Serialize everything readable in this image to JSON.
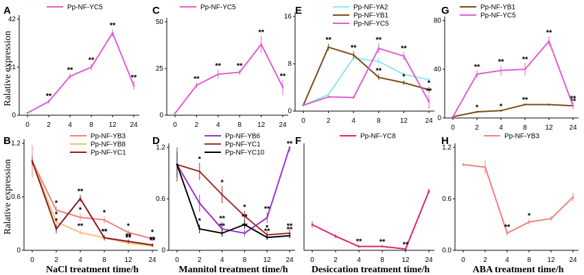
{
  "figure": {
    "ylabel_top": "Ralative expression",
    "ylabel_bottom": "Ralative expression"
  },
  "chart_data": [
    {
      "panel": "A",
      "type": "line",
      "categories": [
        "0",
        "2",
        "4",
        "8",
        "12",
        "24"
      ],
      "ylim": [
        0,
        42
      ],
      "yticks": [
        "0",
        "21",
        "42"
      ],
      "xlabel": "",
      "legend_position": "top-left",
      "series": [
        {
          "name": "Pp-NF-YC5",
          "color": "#e35bd3",
          "values": [
            1,
            6,
            17,
            21,
            36,
            13
          ],
          "errors": [
            0.3,
            0.8,
            1.2,
            1.5,
            1.6,
            1.8
          ],
          "sig": [
            "",
            "**",
            "**",
            "**",
            "**",
            "**"
          ]
        }
      ]
    },
    {
      "panel": "C",
      "type": "line",
      "categories": [
        "0",
        "2",
        "4",
        "8",
        "12",
        "24"
      ],
      "ylim": [
        0,
        50
      ],
      "yticks": [
        "0",
        "25",
        "50"
      ],
      "xlabel": "",
      "legend_position": "top-left",
      "series": [
        {
          "name": "Pp-NF-YC5",
          "color": "#e35bd3",
          "values": [
            1,
            16,
            22,
            23,
            38,
            15
          ],
          "errors": [
            0.3,
            1.5,
            2.5,
            1.5,
            4.5,
            4.0
          ],
          "sig": [
            "",
            "**",
            "**",
            "**",
            "**",
            "**"
          ]
        }
      ]
    },
    {
      "panel": "E",
      "type": "line",
      "categories": [
        "0",
        "2",
        "4",
        "8",
        "12",
        "24"
      ],
      "ylim": [
        0,
        16
      ],
      "yticks": [
        "0",
        "8",
        "16"
      ],
      "xlabel": "",
      "legend_position": "top-left",
      "series": [
        {
          "name": "Pp-NF-YA2",
          "color": "#8ee8ee",
          "values": [
            1,
            2.8,
            9,
            8.4,
            6.2,
            5.3
          ],
          "errors": [
            0.2,
            0.3,
            0.5,
            0.6,
            0.5,
            0.5
          ],
          "sig": [
            "",
            "",
            "",
            "",
            "",
            ""
          ]
        },
        {
          "name": "Pp-NF-YB1",
          "color": "#7b4a14",
          "values": [
            1,
            10.8,
            9.5,
            5.7,
            4.8,
            3.6
          ],
          "errors": [
            0.2,
            0.6,
            0.6,
            0.5,
            0.4,
            0.5
          ],
          "sig": [
            "",
            "**",
            "**",
            "**",
            "*",
            "*"
          ]
        },
        {
          "name": "Pp-NF-YC5",
          "color": "#e35bd3",
          "values": [
            1,
            2.4,
            2.3,
            10.6,
            9.3,
            1.6
          ],
          "errors": [
            0.2,
            0.2,
            0.2,
            0.8,
            0.7,
            1.2
          ],
          "sig": [
            "",
            "",
            "",
            "**",
            "**",
            "**"
          ]
        }
      ]
    },
    {
      "panel": "G",
      "type": "line",
      "categories": [
        "0",
        "2",
        "4",
        "8",
        "12",
        "24"
      ],
      "ylim": [
        0,
        80
      ],
      "yticks": [
        "0",
        "40",
        "80"
      ],
      "xlabel": "",
      "legend_position": "top-left",
      "series": [
        {
          "name": "Pp-NF-YB1",
          "color": "#7b4a14",
          "values": [
            1,
            5,
            6,
            11,
            11,
            10
          ],
          "errors": [
            0.3,
            0.5,
            0.6,
            0.8,
            0.8,
            0.8
          ],
          "sig": [
            "",
            "*",
            "*",
            "**",
            "",
            "**"
          ]
        },
        {
          "name": "Pp-NF-YC5",
          "color": "#e35bd3",
          "values": [
            1,
            36,
            39,
            40,
            63,
            10
          ],
          "errors": [
            0.3,
            3,
            4,
            5,
            4,
            3
          ],
          "sig": [
            "",
            "**",
            "**",
            "**",
            "**",
            "**"
          ]
        }
      ]
    },
    {
      "panel": "B",
      "type": "line",
      "categories": [
        "0",
        "2",
        "4",
        "8",
        "12",
        "24"
      ],
      "ylim": [
        0,
        1.2
      ],
      "yticks": [
        "0",
        "0.6",
        "1.2"
      ],
      "xlabel": "NaCl treatment time/h",
      "legend_position": "top-right",
      "series": [
        {
          "name": "Pp-NF-YB3",
          "color": "#f08080",
          "values": [
            1,
            0.45,
            0.37,
            0.34,
            0.2,
            0.13
          ],
          "errors": [
            0.18,
            0.04,
            0.04,
            0.04,
            0.03,
            0.03
          ],
          "sig": [
            "",
            "*",
            "*",
            "*",
            "*",
            "*"
          ]
        },
        {
          "name": "Pp-NF-YB8",
          "color": "#f6bf7a",
          "values": [
            1,
            0.32,
            0.2,
            0.14,
            0.08,
            0.05
          ],
          "errors": [
            0.05,
            0.04,
            0.03,
            0.03,
            0.02,
            0.02
          ],
          "sig": [
            "",
            "*",
            "**",
            "**",
            "**",
            "**"
          ]
        },
        {
          "name": "Pp-NF-YC1",
          "color": "#8b1a1a",
          "values": [
            1,
            0.24,
            0.58,
            0.14,
            0.1,
            0.06
          ],
          "errors": [
            0.05,
            0.05,
            0.04,
            0.03,
            0.02,
            0.02
          ],
          "sig": [
            "",
            "*",
            "**",
            "**",
            "**",
            "**"
          ]
        }
      ]
    },
    {
      "panel": "D",
      "type": "line",
      "categories": [
        "0",
        "2",
        "4",
        "8",
        "12",
        "24"
      ],
      "ylim": [
        0,
        1.2
      ],
      "yticks": [
        "0",
        "0.6",
        "1.2"
      ],
      "xlabel": "Mannitol treatment time/h",
      "legend_position": "top-right",
      "series": [
        {
          "name": "Pp-NF-YB6",
          "color": "#9932cc",
          "values": [
            1,
            0.55,
            0.25,
            0.2,
            0.38,
            1.2
          ],
          "errors": [
            0.1,
            0.1,
            0.08,
            0.04,
            0.06,
            0.05
          ],
          "sig": [
            "",
            "",
            "**",
            "**",
            "**",
            "**"
          ]
        },
        {
          "name": "Pp-NF-YC1",
          "color": "#a52a2a",
          "values": [
            1,
            0.92,
            0.65,
            0.4,
            0.18,
            0.2
          ],
          "errors": [
            0.2,
            0.1,
            0.1,
            0.06,
            0.04,
            0.04
          ],
          "sig": [
            "",
            "*",
            "*",
            "*",
            "*",
            "**"
          ]
        },
        {
          "name": "Pp-NF-YC10",
          "color": "#000000",
          "values": [
            1,
            0.25,
            0.2,
            0.3,
            0.15,
            0.17
          ],
          "errors": [
            0.15,
            0.05,
            0.04,
            0.05,
            0.03,
            0.03
          ],
          "sig": [
            "",
            "*",
            "**",
            "**",
            "**",
            "**"
          ]
        }
      ]
    },
    {
      "panel": "F",
      "type": "line",
      "categories": [
        "0",
        "2",
        "4",
        "8",
        "12",
        "24"
      ],
      "ylim": [
        0,
        4
      ],
      "yticks": [],
      "xlabel": "Desiccation treatment time/h",
      "legend_position": "top-right",
      "series": [
        {
          "name": "Pp-NF-YC8",
          "color": "#e0206e",
          "values": [
            1,
            0.55,
            0.15,
            0.15,
            0.05,
            2.3
          ],
          "errors": [
            0.12,
            0.08,
            0.05,
            0.04,
            0.03,
            0.1
          ],
          "sig": [
            "",
            "",
            "**",
            "**",
            "**",
            ""
          ]
        }
      ]
    },
    {
      "panel": "H",
      "type": "line",
      "categories": [
        "0",
        "2",
        "4",
        "8",
        "12",
        "24"
      ],
      "ylim": [
        0,
        1.2
      ],
      "yticks": [
        "0.0",
        "0.6",
        "1.2"
      ],
      "xlabel": "ABA treatment time/h",
      "legend_position": "top-right",
      "series": [
        {
          "name": "Pp-NF-YB3",
          "color": "#f08080",
          "values": [
            1,
            0.97,
            0.2,
            0.33,
            0.37,
            0.62
          ],
          "errors": [
            0.02,
            0.08,
            0.03,
            0.03,
            0.03,
            0.05
          ],
          "sig": [
            "",
            "",
            "**",
            "*",
            "",
            ""
          ]
        }
      ]
    }
  ]
}
